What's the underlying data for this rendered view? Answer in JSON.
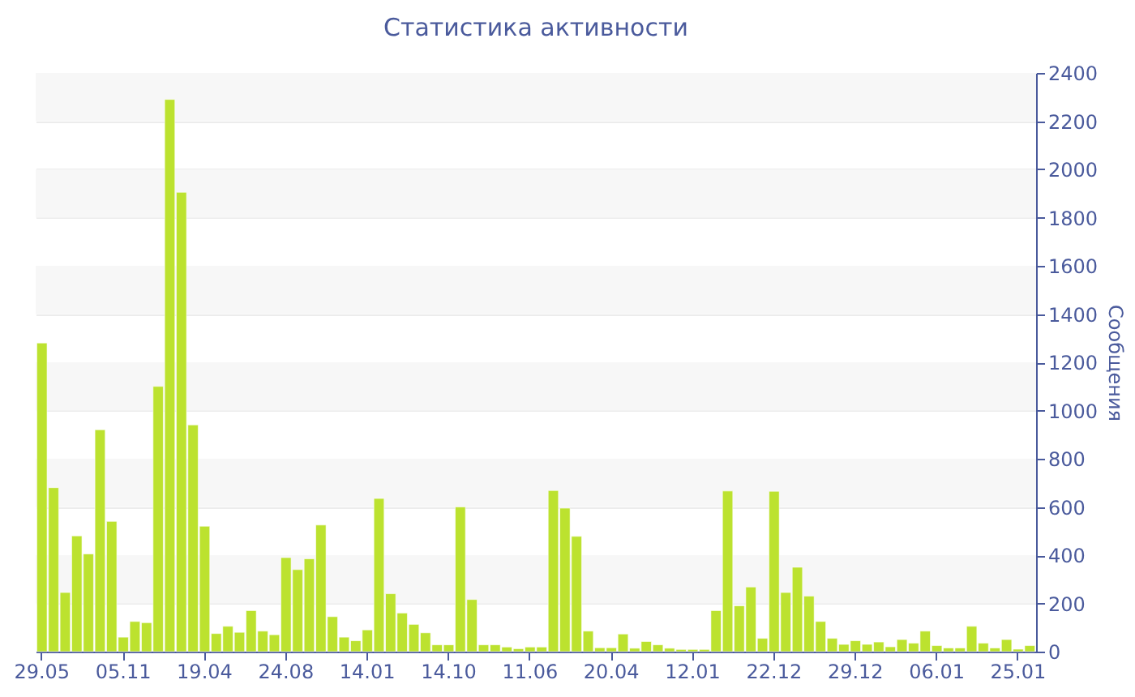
{
  "chart_data": {
    "type": "bar",
    "title": "Статистика активности",
    "ylabel": "Сообщения",
    "categories": [
      "29.05",
      null,
      null,
      null,
      null,
      null,
      null,
      "05.11",
      null,
      null,
      null,
      null,
      null,
      null,
      "19.04",
      null,
      null,
      null,
      null,
      null,
      null,
      "24.08",
      null,
      null,
      null,
      null,
      null,
      null,
      "14.01",
      null,
      null,
      null,
      null,
      null,
      null,
      "14.10",
      null,
      null,
      null,
      null,
      null,
      null,
      "11.06",
      null,
      null,
      null,
      null,
      null,
      null,
      "20.04",
      null,
      null,
      null,
      null,
      null,
      null,
      "12.01",
      null,
      null,
      null,
      null,
      null,
      null,
      "22.12",
      null,
      null,
      null,
      null,
      null,
      null,
      "29.12",
      null,
      null,
      null,
      null,
      null,
      null,
      "06.01",
      null,
      null,
      null,
      null,
      null,
      null,
      "25.01",
      null
    ],
    "values": [
      1280,
      680,
      245,
      480,
      405,
      920,
      540,
      60,
      125,
      120,
      1100,
      2290,
      1905,
      940,
      520,
      75,
      105,
      80,
      170,
      85,
      70,
      390,
      340,
      385,
      525,
      145,
      60,
      45,
      90,
      635,
      240,
      160,
      113,
      78,
      28,
      28,
      600,
      216,
      28,
      28,
      19,
      12,
      19,
      19,
      668,
      595,
      478,
      85,
      16,
      16,
      73,
      14,
      42,
      28,
      14,
      9,
      9,
      9,
      170,
      666,
      190,
      268,
      55,
      665,
      245,
      350,
      230,
      125,
      55,
      30,
      45,
      30,
      40,
      20,
      50,
      35,
      85,
      25,
      15,
      15,
      105,
      35,
      15,
      50,
      10,
      25
    ],
    "color": "#bce22f",
    "ylim": [
      0,
      2400
    ],
    "yticks": [
      0,
      200,
      400,
      600,
      800,
      1000,
      1200,
      1400,
      1600,
      1800,
      2000,
      2200,
      2400
    ],
    "grid": "y"
  }
}
